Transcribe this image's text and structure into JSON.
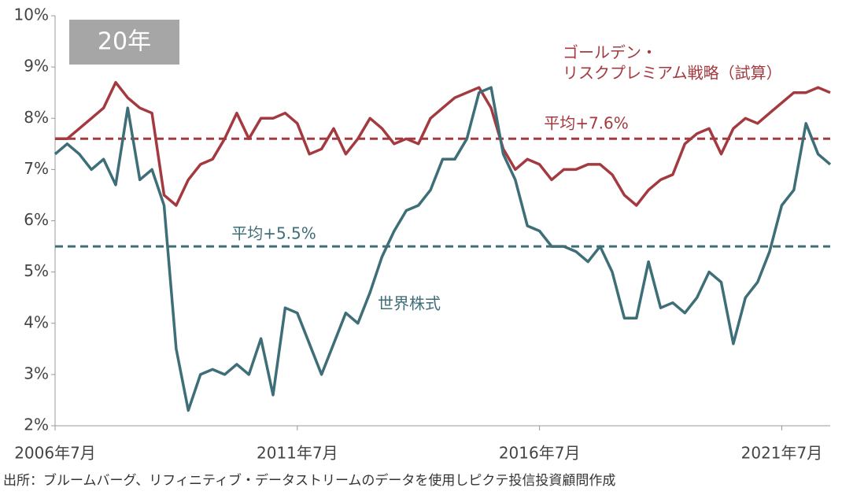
{
  "chart_data": {
    "type": "line",
    "badge": "20年",
    "source": "出所：ブルームバーグ、リフィニティブ・データストリームのデータを使用しピクテ投信投資顧問作成",
    "x": [
      "2006-07",
      "2006-10",
      "2007-01",
      "2007-04",
      "2007-07",
      "2007-10",
      "2008-01",
      "2008-04",
      "2008-07",
      "2008-10",
      "2009-01",
      "2009-04",
      "2009-07",
      "2009-10",
      "2010-01",
      "2010-04",
      "2010-07",
      "2010-10",
      "2011-01",
      "2011-04",
      "2011-07",
      "2011-10",
      "2012-01",
      "2012-04",
      "2012-07",
      "2012-10",
      "2013-01",
      "2013-04",
      "2013-07",
      "2013-10",
      "2014-01",
      "2014-04",
      "2014-07",
      "2014-10",
      "2015-01",
      "2015-04",
      "2015-07",
      "2015-10",
      "2016-01",
      "2016-04",
      "2016-07",
      "2016-10",
      "2017-01",
      "2017-04",
      "2017-07",
      "2017-10",
      "2018-01",
      "2018-04",
      "2018-07",
      "2018-10",
      "2019-01",
      "2019-04",
      "2019-07",
      "2019-10",
      "2020-01",
      "2020-04",
      "2020-07",
      "2020-10",
      "2021-01",
      "2021-04",
      "2021-07",
      "2021-10",
      "2022-01",
      "2022-04",
      "2022-07"
    ],
    "series": [
      {
        "name": [
          "ゴールデン・",
          "リスクプレミアム戦略（試算）"
        ],
        "color": "#a33a40",
        "values": [
          7.6,
          7.6,
          7.8,
          8.0,
          8.2,
          8.7,
          8.4,
          8.2,
          8.1,
          6.5,
          6.3,
          6.8,
          7.1,
          7.2,
          7.6,
          8.1,
          7.6,
          8.0,
          8.0,
          8.1,
          7.9,
          7.3,
          7.4,
          7.8,
          7.3,
          7.6,
          8.0,
          7.8,
          7.5,
          7.6,
          7.5,
          8.0,
          8.2,
          8.4,
          8.5,
          8.6,
          8.2,
          7.4,
          7.0,
          7.2,
          7.1,
          6.8,
          7.0,
          7.0,
          7.1,
          7.1,
          6.9,
          6.5,
          6.3,
          6.6,
          6.8,
          6.9,
          7.5,
          7.7,
          7.8,
          7.3,
          7.8,
          8.0,
          7.9,
          8.1,
          8.3,
          8.5,
          8.5,
          8.6,
          8.5
        ]
      },
      {
        "name": [
          "世界株式"
        ],
        "color": "#3e6e77",
        "values": [
          7.3,
          7.5,
          7.3,
          7.0,
          7.2,
          6.7,
          8.2,
          6.8,
          7.0,
          6.3,
          3.5,
          2.3,
          3.0,
          3.1,
          3.0,
          3.2,
          3.0,
          3.7,
          2.6,
          4.3,
          4.2,
          3.6,
          3.0,
          3.6,
          4.2,
          4.0,
          4.6,
          5.3,
          5.8,
          6.2,
          6.3,
          6.6,
          7.2,
          7.2,
          7.6,
          8.5,
          8.6,
          7.3,
          6.8,
          5.9,
          5.8,
          5.5,
          5.5,
          5.4,
          5.2,
          5.5,
          5.0,
          4.1,
          4.1,
          5.2,
          4.3,
          4.4,
          4.2,
          4.5,
          5.0,
          4.8,
          3.6,
          4.5,
          4.8,
          5.4,
          6.3,
          6.6,
          7.9,
          7.3,
          7.1
        ]
      }
    ],
    "averages": [
      {
        "label": "平均+7.6%",
        "value": 7.6,
        "color": "#a33a40"
      },
      {
        "label": "平均+5.5%",
        "value": 5.5,
        "color": "#3e6e77"
      }
    ],
    "xlim": [
      "2006-07",
      "2022-07"
    ],
    "xticks": [
      {
        "value": "2006-07",
        "label": "2006年7月"
      },
      {
        "value": "2011-07",
        "label": "2011年7月"
      },
      {
        "value": "2016-07",
        "label": "2016年7月"
      },
      {
        "value": "2021-07",
        "label": "2021年7月"
      }
    ],
    "ylim": [
      2,
      10
    ],
    "yticks": [
      {
        "value": 2,
        "label": "2%"
      },
      {
        "value": 3,
        "label": "3%"
      },
      {
        "value": 4,
        "label": "4%"
      },
      {
        "value": 5,
        "label": "5%"
      },
      {
        "value": 6,
        "label": "6%"
      },
      {
        "value": 7,
        "label": "7%"
      },
      {
        "value": 8,
        "label": "8%"
      },
      {
        "value": 9,
        "label": "9%"
      },
      {
        "value": 10,
        "label": "10%"
      }
    ]
  }
}
